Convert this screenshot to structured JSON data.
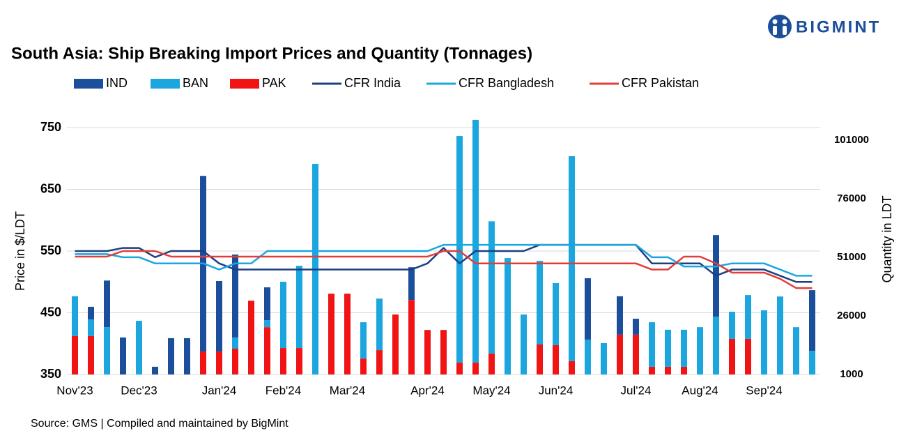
{
  "chart_data": {
    "type": "bar",
    "logo": "BIGMINT",
    "title": "South Asia: Ship Breaking Import Prices and Quantity (Tonnages)",
    "source": "Source: GMS | Compiled and maintained by BigMint",
    "y_label": "Price in $/LDT",
    "y2_label": "Quantity in LDT",
    "categories": [
      "Nov'23",
      null,
      null,
      null,
      "Dec'23",
      null,
      null,
      null,
      null,
      "Jan'24",
      null,
      null,
      null,
      "Feb'24",
      null,
      null,
      null,
      "Mar'24",
      null,
      null,
      null,
      null,
      "Apr'24",
      null,
      null,
      null,
      "May'24",
      null,
      null,
      null,
      "Jun'24",
      null,
      null,
      null,
      null,
      "Jul'24",
      null,
      null,
      null,
      "Aug'24",
      null,
      null,
      null,
      "Sep'24",
      null,
      null,
      null
    ],
    "ylim": [
      350,
      750
    ],
    "yticks": [
      350,
      450,
      550,
      650,
      750
    ],
    "y2lim": [
      1000,
      106400
    ],
    "y2ticks": [
      1000,
      26000,
      51000,
      76000,
      101000
    ],
    "grid": true,
    "series": [
      {
        "name": "IND",
        "type": "bar",
        "axis": "y2",
        "color": "#1b4f9b",
        "values": [
          0,
          5400,
          19900,
          16800,
          0,
          4300,
          16500,
          16500,
          75000,
          30100,
          35400,
          0,
          14000,
          0,
          0,
          0,
          0,
          0,
          0,
          0,
          0,
          14000,
          0,
          0,
          0,
          0,
          0,
          0,
          0,
          0,
          0,
          0,
          26200,
          0,
          16400,
          6800,
          0,
          0,
          0,
          0,
          34800,
          0,
          0,
          0,
          0,
          0,
          25900
        ]
      },
      {
        "name": "BAN",
        "type": "bar",
        "axis": "y2",
        "color": "#1ba6df",
        "values": [
          17000,
          7100,
          21200,
          0,
          23900,
          0,
          0,
          0,
          0,
          0,
          4800,
          0,
          3000,
          28300,
          35100,
          90900,
          0,
          0,
          15500,
          22000,
          0,
          0,
          0,
          0,
          96700,
          103600,
          56500,
          50700,
          26600,
          35700,
          26500,
          87500,
          15900,
          14400,
          0,
          0,
          19000,
          15800,
          15800,
          21200,
          25700,
          11600,
          18700,
          28400,
          34300,
          21200,
          11100
        ]
      },
      {
        "name": "PAK",
        "type": "bar",
        "axis": "y2",
        "color": "#f01414",
        "values": [
          17400,
          17400,
          0,
          0,
          0,
          0,
          0,
          0,
          10800,
          10800,
          12000,
          32500,
          21200,
          12300,
          12300,
          0,
          35500,
          35500,
          7800,
          11400,
          26600,
          32800,
          20000,
          20000,
          6100,
          6100,
          9900,
          0,
          0,
          13800,
          13500,
          6700,
          0,
          0,
          18000,
          18000,
          4300,
          4300,
          4300,
          0,
          0,
          16200,
          16200,
          0,
          0,
          0,
          0
        ]
      },
      {
        "name": "CFR India",
        "type": "line",
        "color": "#1d3f80",
        "values": [
          550,
          550,
          550,
          555,
          555,
          540,
          550,
          550,
          550,
          530,
          520,
          520,
          520,
          520,
          520,
          520,
          520,
          520,
          520,
          520,
          520,
          520,
          530,
          555,
          530,
          550,
          550,
          550,
          550,
          560,
          560,
          560,
          560,
          560,
          560,
          560,
          530,
          530,
          530,
          530,
          510,
          520,
          520,
          520,
          510,
          500,
          500
        ]
      },
      {
        "name": "CFR Bangladesh",
        "type": "line",
        "color": "#1ba6df",
        "values": [
          545,
          545,
          545,
          540,
          540,
          530,
          530,
          530,
          530,
          520,
          530,
          530,
          550,
          550,
          550,
          550,
          550,
          550,
          550,
          550,
          550,
          550,
          550,
          560,
          560,
          560,
          560,
          560,
          560,
          560,
          560,
          560,
          560,
          560,
          560,
          560,
          540,
          540,
          525,
          525,
          525,
          530,
          530,
          530,
          520,
          510,
          510
        ]
      },
      {
        "name": "CFR Pakistan",
        "type": "line",
        "color": "#e03e3a",
        "values": [
          541,
          541,
          541,
          550,
          550,
          550,
          541,
          541,
          541,
          541,
          541,
          541,
          541,
          541,
          541,
          541,
          541,
          541,
          541,
          541,
          541,
          541,
          541,
          550,
          550,
          530,
          530,
          530,
          530,
          530,
          530,
          530,
          530,
          530,
          530,
          530,
          520,
          520,
          541,
          541,
          530,
          515,
          515,
          515,
          505,
          490,
          490
        ]
      }
    ]
  }
}
